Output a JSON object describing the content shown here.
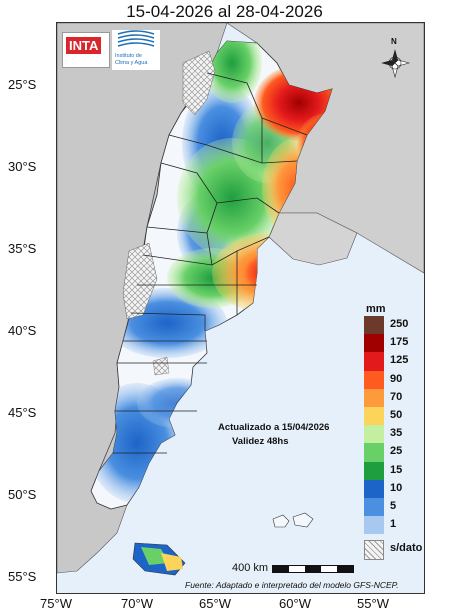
{
  "title": "15-04-2026 al 28-04-2026",
  "logos": {
    "inta": "INTA",
    "clima_line1": "Instituto de",
    "clima_line2": "Clima y Agua"
  },
  "lat_labels": [
    "25°S",
    "30°S",
    "35°S",
    "40°S",
    "45°S",
    "50°S",
    "55°S"
  ],
  "lon_labels": [
    "75°W",
    "70°W",
    "65°W",
    "60°W",
    "55°W"
  ],
  "north_label": "N",
  "legend": {
    "unit": "mm",
    "labels": [
      "250",
      "175",
      "125",
      "90",
      "70",
      "50",
      "35",
      "25",
      "15",
      "10",
      "5",
      "1",
      "s/dato"
    ],
    "colors": [
      "#6b3a2a",
      "#a00000",
      "#e31a1c",
      "#ff5a1f",
      "#fd9a3c",
      "#fdd45a",
      "#c2f0a0",
      "#69d068",
      "#1f9e3f",
      "#1c64c8",
      "#4a8fe0",
      "#a7c8ef",
      "#e2edf8"
    ]
  },
  "annotation": {
    "line1": "Actualizado a 15/04/2026",
    "line2": "Validez 48hs"
  },
  "scale_label": "400 km",
  "source": "Fuente: Adaptado e interpretado del modelo GFS-NCEP."
}
